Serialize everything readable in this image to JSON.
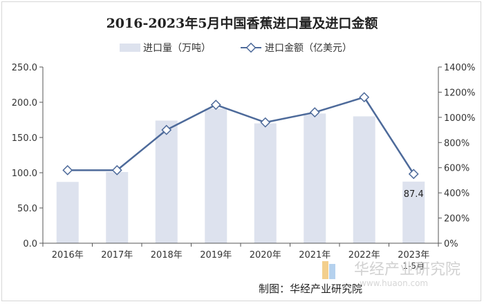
{
  "chart_data": {
    "type": "bar+line",
    "title": "2016-2023年5月中国香蕉进口量及进口金额",
    "categories": [
      "2016年",
      "2017年",
      "2018年",
      "2019年",
      "2020年",
      "2021年",
      "2022年",
      "2023年"
    ],
    "last_category_sub": "1-5月",
    "series": [
      {
        "name": "进口量（万吨）",
        "type": "bar",
        "axis": "left",
        "values": [
          87,
          101,
          174,
          191,
          170,
          184,
          180,
          87.4
        ]
      },
      {
        "name": "进口金额（亿美元）",
        "type": "line",
        "axis": "right",
        "values": [
          580,
          580,
          900,
          1100,
          960,
          1040,
          1160,
          550
        ]
      }
    ],
    "y_left": {
      "min": 0,
      "max": 250,
      "step": 50,
      "tick_labels": [
        "0.0",
        "50.0",
        "100.0",
        "150.0",
        "200.0",
        "250.0"
      ]
    },
    "y_right": {
      "min": 0,
      "max": 1400,
      "step": 200,
      "tick_labels": [
        "0%",
        "200%",
        "400%",
        "600%",
        "800%",
        "1000%",
        "1200%",
        "1400%"
      ]
    },
    "data_labels": [
      {
        "category_index": 7,
        "text": "87.4"
      }
    ],
    "grid": false,
    "legend_position": "top-center",
    "colors": {
      "bar": "#dde2ee",
      "line": "#4d6a9a",
      "marker_fill": "#ffffff",
      "axis": "#555555"
    }
  },
  "source_note": "制图：华经产业研究院",
  "watermark": {
    "name": "华经产业研究院",
    "url": "www.huaon.com"
  }
}
